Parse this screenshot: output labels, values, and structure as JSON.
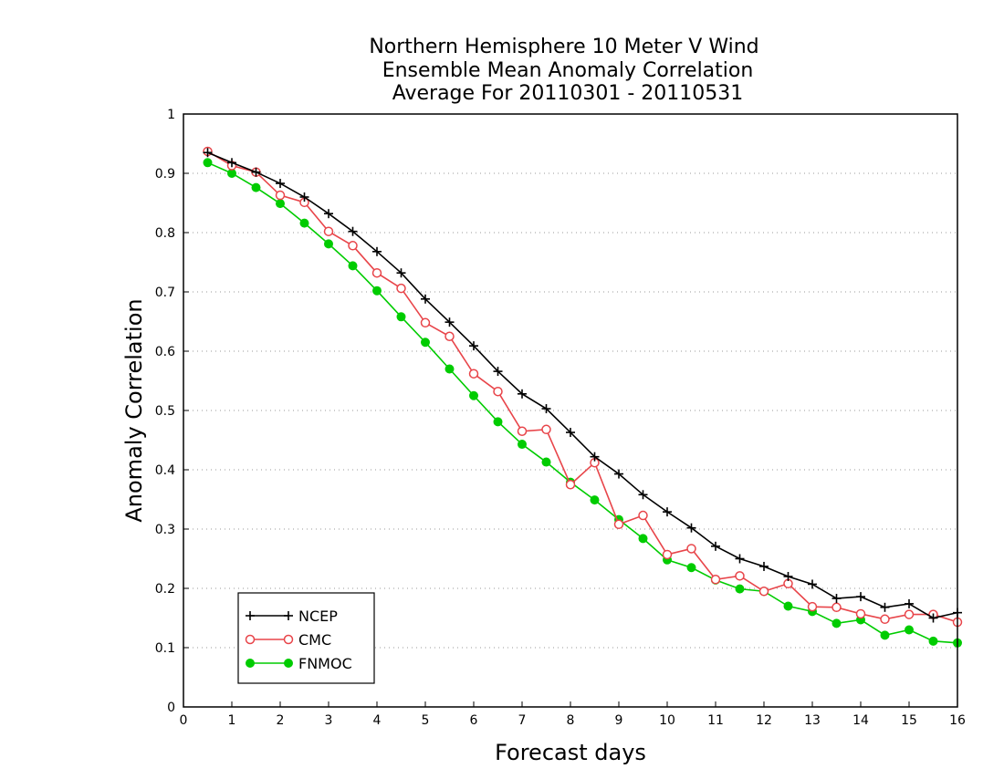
{
  "chart_data": {
    "type": "line",
    "title": [
      "Northern Hemisphere 10 Meter V Wind",
      "Ensemble Mean Anomaly Correlation",
      "Average For 20110301 - 20110531"
    ],
    "xlabel": "Forecast days",
    "ylabel": "Anomaly Correlation",
    "xlim": [
      0,
      16
    ],
    "ylim": [
      0,
      1
    ],
    "xticks": [
      "0",
      "1",
      "2",
      "3",
      "4",
      "5",
      "6",
      "7",
      "8",
      "9",
      "10",
      "11",
      "12",
      "13",
      "14",
      "15",
      "16"
    ],
    "yticks": [
      "0",
      "0.1",
      "0.2",
      "0.3",
      "0.4",
      "0.5",
      "0.6",
      "0.7",
      "0.8",
      "0.9",
      "1"
    ],
    "grid": "horizontal dotted",
    "legend_position": "bottom-left",
    "x": [
      0.5,
      1,
      1.5,
      2,
      2.5,
      3,
      3.5,
      4,
      4.5,
      5,
      5.5,
      6,
      6.5,
      7,
      7.5,
      8,
      8.5,
      9,
      9.5,
      10,
      10.5,
      11,
      11.5,
      12,
      12.5,
      13,
      13.5,
      14,
      14.5,
      15,
      15.5,
      16
    ],
    "series": [
      {
        "name": "NCEP",
        "color": "#000000",
        "marker": "plus",
        "values": [
          0.935,
          0.918,
          0.902,
          0.883,
          0.86,
          0.832,
          0.802,
          0.768,
          0.732,
          0.688,
          0.649,
          0.609,
          0.566,
          0.528,
          0.503,
          0.463,
          0.422,
          0.393,
          0.358,
          0.329,
          0.302,
          0.271,
          0.25,
          0.237,
          0.22,
          0.207,
          0.183,
          0.186,
          0.168,
          0.174,
          0.15,
          0.159
        ]
      },
      {
        "name": "CMC",
        "color": "#e8454a",
        "marker": "open-circle",
        "values": [
          0.937,
          0.913,
          0.902,
          0.863,
          0.851,
          0.802,
          0.778,
          0.732,
          0.706,
          0.648,
          0.625,
          0.562,
          0.532,
          0.465,
          0.468,
          0.375,
          0.412,
          0.308,
          0.323,
          0.257,
          0.267,
          0.215,
          0.221,
          0.195,
          0.208,
          0.169,
          0.168,
          0.157,
          0.148,
          0.156,
          0.156,
          0.143
        ]
      },
      {
        "name": "FNMOC",
        "color": "#00cc00",
        "marker": "filled-circle",
        "values": [
          0.918,
          0.9,
          0.876,
          0.849,
          0.816,
          0.781,
          0.744,
          0.702,
          0.658,
          0.615,
          0.57,
          0.525,
          0.481,
          0.443,
          0.413,
          0.379,
          0.349,
          0.316,
          0.284,
          0.248,
          0.235,
          0.214,
          0.199,
          0.195,
          0.17,
          0.161,
          0.141,
          0.147,
          0.121,
          0.13,
          0.111,
          0.108
        ]
      }
    ]
  }
}
